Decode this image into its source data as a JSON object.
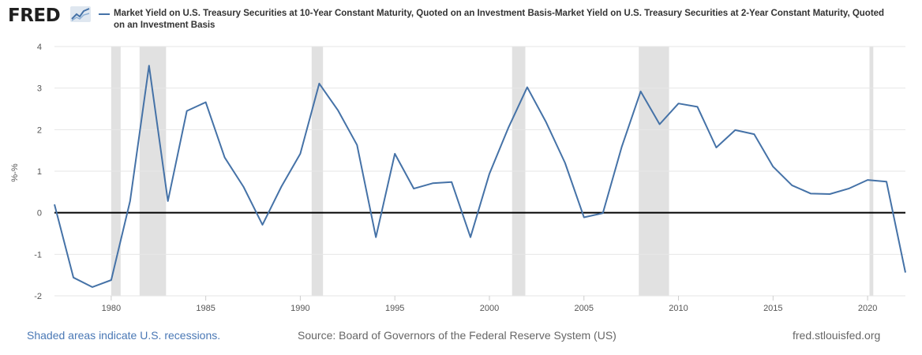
{
  "header": {
    "logo_text": "FRED",
    "logo_icon": "fred-graph-icon",
    "series_label": "Market Yield on U.S. Treasury Securities at 10-Year Constant Maturity, Quoted on an Investment Basis-Market Yield on U.S. Treasury Securities at 2-Year Constant Maturity, Quoted on an Investment Basis"
  },
  "footer": {
    "note": "Shaded areas indicate U.S. recessions.",
    "source": "Source: Board of Governors of the Federal Reserve System (US)",
    "url": "fred.stlouisfed.org"
  },
  "colors": {
    "series": "#4572a7",
    "recession": "#e1e1e1",
    "grid": "#e6e6e6",
    "zero_line": "#000000"
  },
  "chart_data": {
    "type": "line",
    "title": "",
    "xlabel": "",
    "ylabel": "%-%",
    "xlim": [
      1977,
      2022
    ],
    "ylim": [
      -2,
      4
    ],
    "x_ticks": [
      1980,
      1985,
      1990,
      1995,
      2000,
      2005,
      2010,
      2015,
      2020
    ],
    "y_ticks": [
      -2,
      -1,
      0,
      1,
      2,
      3,
      4
    ],
    "grid": "horizontal",
    "zero_line": true,
    "recessions": [
      [
        1980.0,
        1980.5
      ],
      [
        1981.5,
        1982.9
      ],
      [
        1990.6,
        1991.2
      ],
      [
        2001.2,
        2001.9
      ],
      [
        2007.9,
        2009.5
      ],
      [
        2020.1,
        2020.3
      ]
    ],
    "series": [
      {
        "name": "Market Yield on U.S. Treasury Securities at 10-Year Constant Maturity, Quoted on an Investment Basis-Market Yield on U.S. Treasury Securities at 2-Year Constant Maturity, Quoted on an Investment Basis",
        "x": [
          1977,
          1978,
          1979,
          1980,
          1981,
          1982,
          1983,
          1984,
          1985,
          1986,
          1987,
          1988,
          1989,
          1990,
          1991,
          1992,
          1993,
          1994,
          1995,
          1996,
          1997,
          1998,
          1999,
          2000,
          2001,
          2002,
          2003,
          2004,
          2005,
          2006,
          2007,
          2008,
          2009,
          2010,
          2011,
          2012,
          2013,
          2014,
          2015,
          2016,
          2017,
          2018,
          2019,
          2020,
          2021,
          2022
        ],
        "values": [
          0.2,
          -1.56,
          -1.79,
          -1.62,
          0.28,
          3.54,
          0.28,
          2.45,
          2.66,
          1.33,
          0.62,
          -0.29,
          0.63,
          1.42,
          3.11,
          2.46,
          1.63,
          -0.59,
          1.42,
          0.58,
          0.71,
          0.74,
          -0.59,
          0.94,
          2.04,
          3.02,
          2.18,
          1.2,
          -0.11,
          -0.01,
          1.59,
          2.92,
          2.13,
          2.63,
          2.55,
          1.57,
          1.99,
          1.89,
          1.11,
          0.66,
          0.46,
          0.45,
          0.58,
          0.79,
          0.75,
          -1.44
        ]
      }
    ]
  }
}
